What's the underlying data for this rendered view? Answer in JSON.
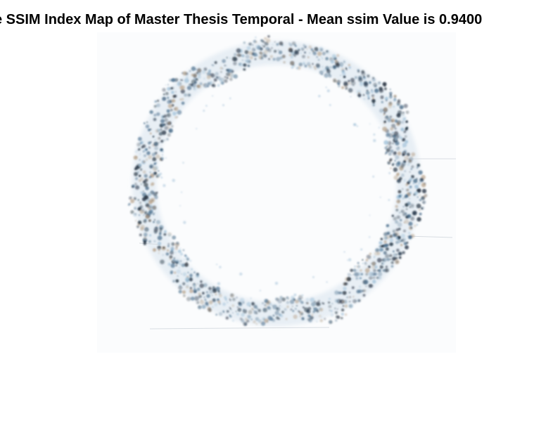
{
  "figure": {
    "title": "e SSIM Index Map of Master Thesis Temporal - Mean ssim Value is 0.9400"
  },
  "image": {
    "subject": "ssim-index-map",
    "colors": {
      "background": "#ffffff",
      "ring_dark": "#1c2a3a",
      "ring_mid": "#4a6e8c",
      "ring_light": "#9fc0d8",
      "ring_warm": "#b9a48c",
      "haze": "#e6edf4"
    }
  }
}
